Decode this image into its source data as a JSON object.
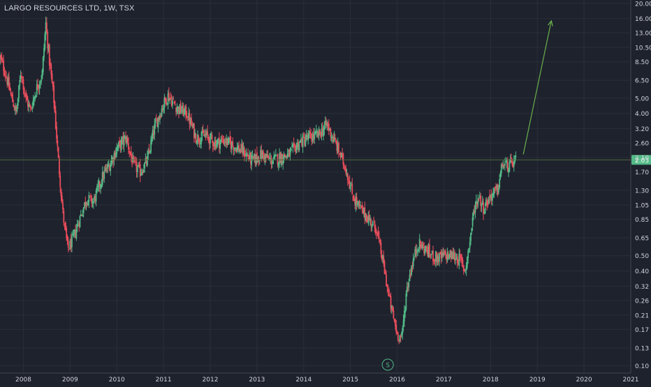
{
  "header": {
    "title": "LARGO RESOURCES LTD, 1W, TSX"
  },
  "price_badge": {
    "value": "2.03"
  },
  "marker": {
    "label": "S"
  },
  "colors": {
    "background": "#1e222d",
    "grid": "#2a2e39",
    "up": "#53b987",
    "down": "#eb4d5c",
    "arrow": "#6ab04c",
    "price_line": "#4f6b3e",
    "axis_text": "#d1d4dc",
    "badge_bg": "#53b987"
  },
  "chart_data": {
    "type": "candlestick",
    "title": "LARGO RESOURCES LTD, 1W, TSX",
    "y_scale": "log",
    "ylim": [
      0.09,
      21
    ],
    "xlim": [
      2007.5,
      2021.0
    ],
    "y_ticks": [
      "20.00",
      "16.00",
      "13.00",
      "10.50",
      "8.50",
      "6.50",
      "5.00",
      "4.00",
      "3.20",
      "2.60",
      "2.10",
      "1.70",
      "1.30",
      "1.05",
      "0.85",
      "0.65",
      "0.50",
      "0.40",
      "0.32",
      "0.26",
      "0.21",
      "0.17",
      "0.13",
      "0.10"
    ],
    "x_ticks": [
      "2008",
      "2009",
      "2010",
      "2011",
      "2012",
      "2013",
      "2014",
      "2015",
      "2016",
      "2017",
      "2018",
      "2019",
      "2020",
      "2021"
    ],
    "last_price": 2.03,
    "grid": true,
    "price_path": [
      [
        2007.5,
        9.0
      ],
      [
        2007.6,
        7.5
      ],
      [
        2007.75,
        5.0
      ],
      [
        2007.85,
        4.0
      ],
      [
        2007.95,
        7.5
      ],
      [
        2008.05,
        5.0
      ],
      [
        2008.15,
        4.2
      ],
      [
        2008.3,
        6.0
      ],
      [
        2008.4,
        7.0
      ],
      [
        2008.48,
        15.0
      ],
      [
        2008.55,
        9.0
      ],
      [
        2008.65,
        5.0
      ],
      [
        2008.75,
        2.0
      ],
      [
        2008.85,
        0.9
      ],
      [
        2008.95,
        0.55
      ],
      [
        2009.05,
        0.62
      ],
      [
        2009.2,
        0.85
      ],
      [
        2009.35,
        1.15
      ],
      [
        2009.5,
        1.1
      ],
      [
        2009.7,
        1.6
      ],
      [
        2009.85,
        1.9
      ],
      [
        2010.0,
        2.4
      ],
      [
        2010.2,
        2.8
      ],
      [
        2010.35,
        1.9
      ],
      [
        2010.5,
        1.7
      ],
      [
        2010.65,
        2.0
      ],
      [
        2010.8,
        3.2
      ],
      [
        2011.0,
        4.6
      ],
      [
        2011.1,
        5.2
      ],
      [
        2011.3,
        4.3
      ],
      [
        2011.5,
        4.0
      ],
      [
        2011.7,
        2.8
      ],
      [
        2011.9,
        2.9
      ],
      [
        2012.1,
        2.6
      ],
      [
        2012.3,
        2.7
      ],
      [
        2012.5,
        2.5
      ],
      [
        2012.7,
        2.3
      ],
      [
        2012.9,
        2.0
      ],
      [
        2013.1,
        2.2
      ],
      [
        2013.3,
        2.0
      ],
      [
        2013.5,
        2.1
      ],
      [
        2013.7,
        2.2
      ],
      [
        2013.9,
        2.6
      ],
      [
        2014.1,
        2.8
      ],
      [
        2014.3,
        2.9
      ],
      [
        2014.5,
        3.4
      ],
      [
        2014.7,
        2.5
      ],
      [
        2014.9,
        1.8
      ],
      [
        2015.05,
        1.2
      ],
      [
        2015.2,
        1.0
      ],
      [
        2015.4,
        0.85
      ],
      [
        2015.55,
        0.75
      ],
      [
        2015.7,
        0.45
      ],
      [
        2015.85,
        0.25
      ],
      [
        2016.0,
        0.16
      ],
      [
        2016.1,
        0.15
      ],
      [
        2016.2,
        0.3
      ],
      [
        2016.3,
        0.42
      ],
      [
        2016.45,
        0.6
      ],
      [
        2016.6,
        0.55
      ],
      [
        2016.75,
        0.5
      ],
      [
        2016.9,
        0.48
      ],
      [
        2017.0,
        0.5
      ],
      [
        2017.2,
        0.5
      ],
      [
        2017.35,
        0.47
      ],
      [
        2017.45,
        0.4
      ],
      [
        2017.55,
        0.6
      ],
      [
        2017.65,
        1.0
      ],
      [
        2017.75,
        1.2
      ],
      [
        2017.85,
        1.0
      ],
      [
        2018.0,
        1.2
      ],
      [
        2018.15,
        1.3
      ],
      [
        2018.25,
        1.9
      ],
      [
        2018.4,
        1.85
      ],
      [
        2018.55,
        2.03
      ]
    ],
    "annotations": {
      "arrow": {
        "from": [
          2018.7,
          2.2
        ],
        "to": [
          2019.3,
          15.5
        ]
      },
      "marker": {
        "x": 2015.8,
        "label": "S"
      }
    }
  }
}
